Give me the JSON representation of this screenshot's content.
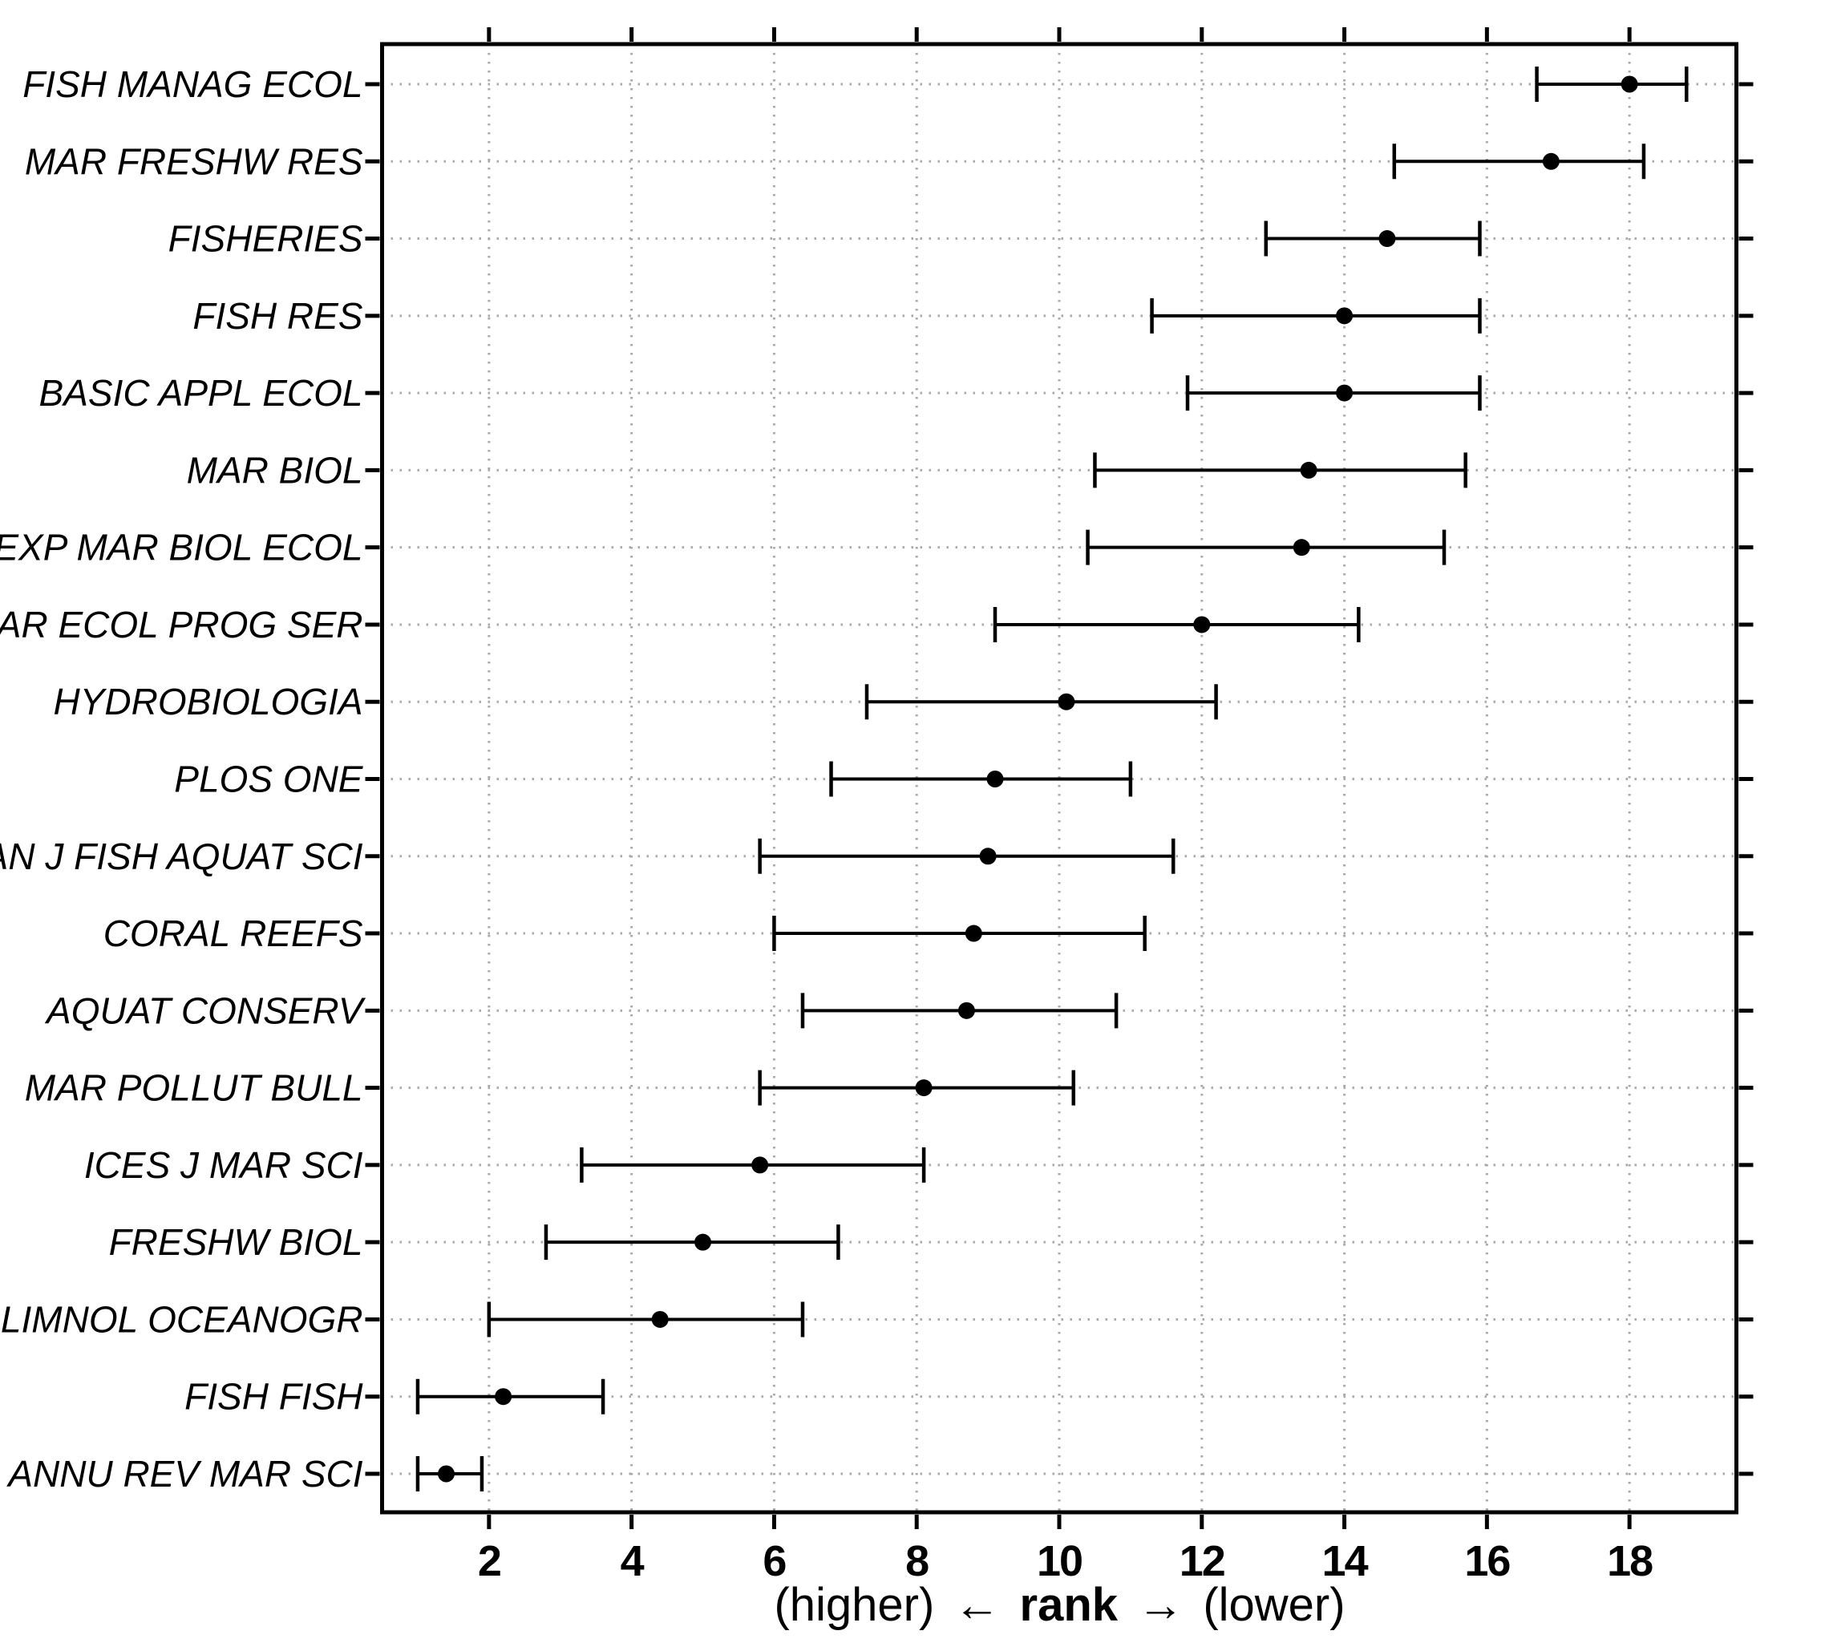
{
  "figure": {
    "background": "#ffffff",
    "xlabel": {
      "pre": "(higher)",
      "arrow_left": "←",
      "emph": "rank",
      "arrow_right": "→",
      "post": "(lower)"
    }
  },
  "chart_data": {
    "type": "scatter",
    "subtype": "horizontal-dot-plot-with-error-bars",
    "title": "",
    "xlabel": "(higher) ← rank → (lower)",
    "ylabel": "",
    "x_ticks": [
      2,
      4,
      6,
      8,
      10,
      12,
      14,
      16,
      18
    ],
    "xlim": [
      0.5,
      19.5
    ],
    "grid": "dotted, horizontal line per journal and vertical line per x tick",
    "legend": "none",
    "point_color": "#000000",
    "grid_color": "#a9a9a9",
    "axis_color": "#000000",
    "rows": [
      {
        "journal": "FISH MANAG ECOL",
        "rank": 18.0,
        "ci_low": 16.7,
        "ci_high": 18.8
      },
      {
        "journal": "MAR FRESHW RES",
        "rank": 16.9,
        "ci_low": 14.7,
        "ci_high": 18.2
      },
      {
        "journal": "FISHERIES",
        "rank": 14.6,
        "ci_low": 12.9,
        "ci_high": 15.9
      },
      {
        "journal": "FISH RES",
        "rank": 14.0,
        "ci_low": 11.3,
        "ci_high": 15.9
      },
      {
        "journal": "BASIC APPL ECOL",
        "rank": 14.0,
        "ci_low": 11.8,
        "ci_high": 15.9
      },
      {
        "journal": "MAR BIOL",
        "rank": 13.5,
        "ci_low": 10.5,
        "ci_high": 15.7
      },
      {
        "journal": "J EXP MAR BIOL ECOL",
        "rank": 13.4,
        "ci_low": 10.4,
        "ci_high": 15.4
      },
      {
        "journal": "MAR ECOL PROG SER",
        "rank": 12.0,
        "ci_low": 9.1,
        "ci_high": 14.2
      },
      {
        "journal": "HYDROBIOLOGIA",
        "rank": 10.1,
        "ci_low": 7.3,
        "ci_high": 12.2
      },
      {
        "journal": "PLOS ONE",
        "rank": 9.1,
        "ci_low": 6.8,
        "ci_high": 11.0
      },
      {
        "journal": "CAN J FISH AQUAT SCI",
        "rank": 9.0,
        "ci_low": 5.8,
        "ci_high": 11.6
      },
      {
        "journal": "CORAL REEFS",
        "rank": 8.8,
        "ci_low": 6.0,
        "ci_high": 11.2
      },
      {
        "journal": "AQUAT CONSERV",
        "rank": 8.7,
        "ci_low": 6.4,
        "ci_high": 10.8
      },
      {
        "journal": "MAR POLLUT BULL",
        "rank": 8.1,
        "ci_low": 5.8,
        "ci_high": 10.2
      },
      {
        "journal": "ICES J MAR SCI",
        "rank": 5.8,
        "ci_low": 3.3,
        "ci_high": 8.1
      },
      {
        "journal": "FRESHW BIOL",
        "rank": 5.0,
        "ci_low": 2.8,
        "ci_high": 6.9
      },
      {
        "journal": "LIMNOL OCEANOGR",
        "rank": 4.4,
        "ci_low": 2.0,
        "ci_high": 6.4
      },
      {
        "journal": "FISH FISH",
        "rank": 2.2,
        "ci_low": 1.0,
        "ci_high": 3.6
      },
      {
        "journal": "ANNU REV MAR SCI",
        "rank": 1.4,
        "ci_low": 1.0,
        "ci_high": 1.9
      }
    ]
  }
}
